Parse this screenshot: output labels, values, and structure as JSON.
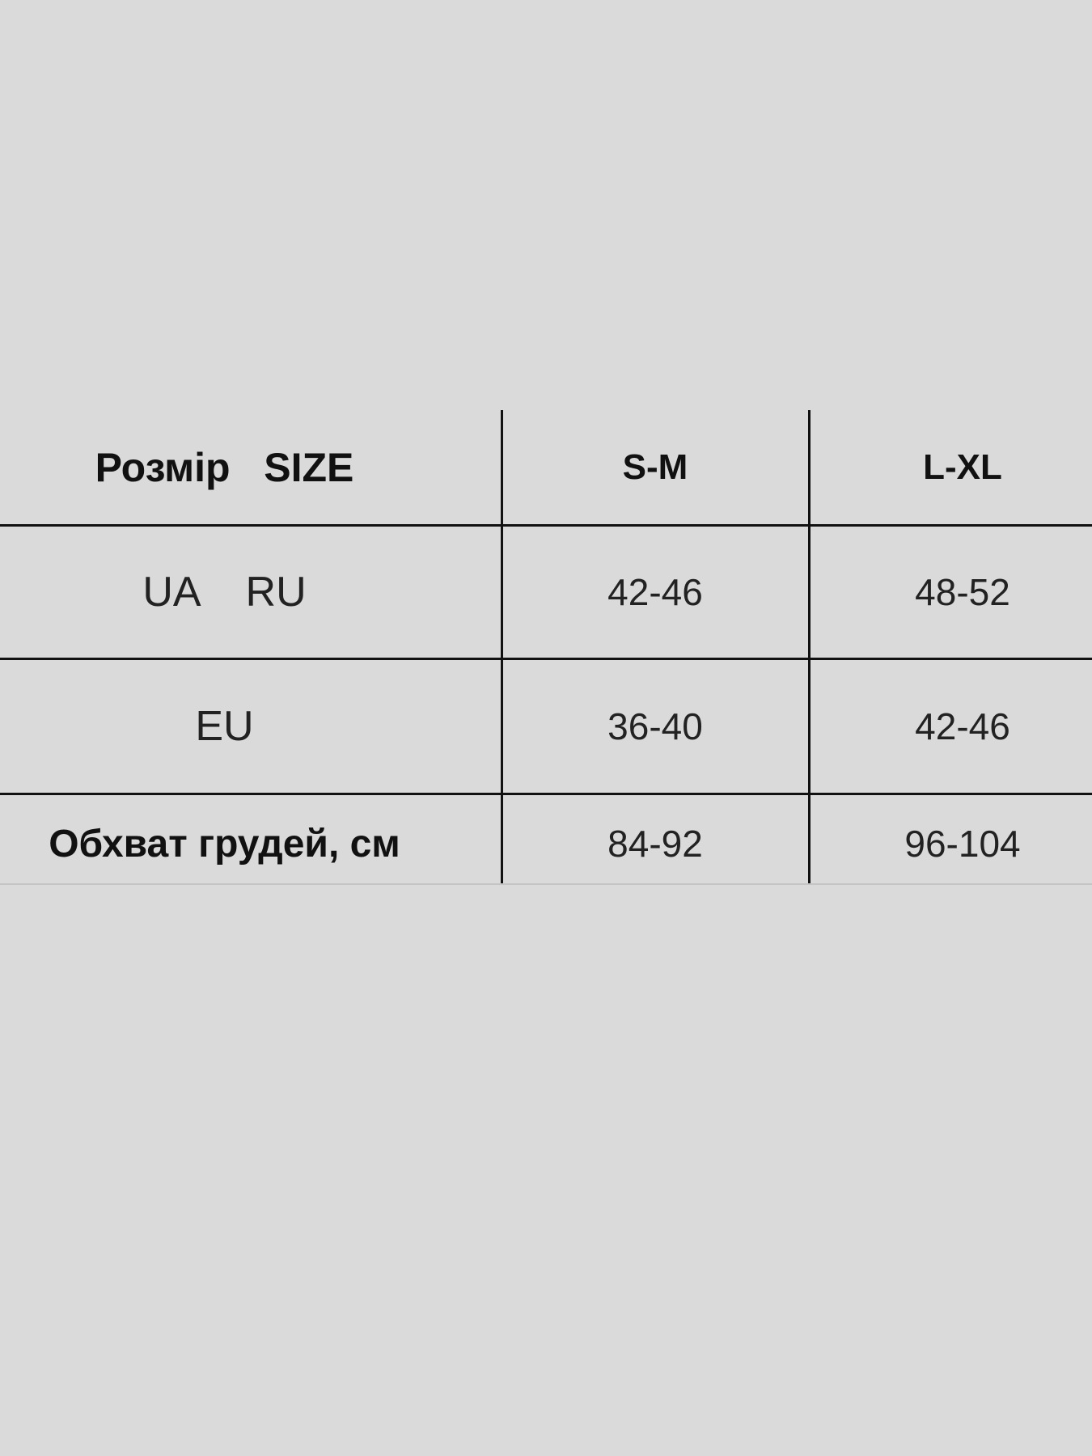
{
  "table": {
    "header": [
      "Розмір   SIZE",
      "S-M",
      "L-XL"
    ],
    "rows": [
      [
        "UA    RU",
        "42-46",
        "48-52"
      ],
      [
        "EU",
        "36-40",
        "42-46"
      ],
      [
        "Обхват грудей, см",
        "84-92",
        "96-104"
      ]
    ]
  }
}
